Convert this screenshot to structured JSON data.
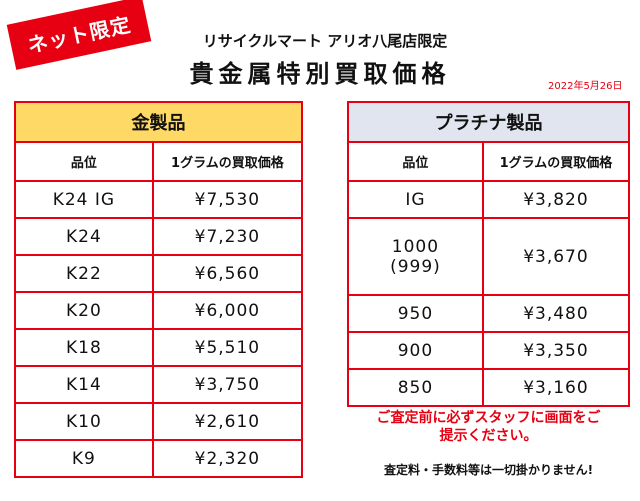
{
  "badge": "ネット限定",
  "store_name": "リサイクルマート アリオ八尾店限定",
  "title": "貴金属特別買取価格",
  "date": "2022年5月26日",
  "gold": {
    "heading": "金製品",
    "col_grade": "品位",
    "col_price": "1グラムの買取価格",
    "rows": [
      {
        "grade": "K24 IG",
        "price": "¥7,530"
      },
      {
        "grade": "K24",
        "price": "¥7,230"
      },
      {
        "grade": "K22",
        "price": "¥6,560"
      },
      {
        "grade": "K20",
        "price": "¥6,000"
      },
      {
        "grade": "K18",
        "price": "¥5,510"
      },
      {
        "grade": "K14",
        "price": "¥3,750"
      },
      {
        "grade": "K10",
        "price": "¥2,610"
      },
      {
        "grade": "K9",
        "price": "¥2,320"
      }
    ]
  },
  "platinum": {
    "heading": "プラチナ製品",
    "col_grade": "品位",
    "col_price": "1グラムの買取価格",
    "rows": [
      {
        "grade": "IG",
        "grade2": "",
        "price": "¥3,820"
      },
      {
        "grade": "1000",
        "grade2": "(999)",
        "price": "¥3,670"
      },
      {
        "grade": "950",
        "grade2": "",
        "price": "¥3,480"
      },
      {
        "grade": "900",
        "grade2": "",
        "price": "¥3,350"
      },
      {
        "grade": "850",
        "grade2": "",
        "price": "¥3,160"
      }
    ]
  },
  "notes": {
    "red_line1": "ご査定前に必ずスタッフに画面をご",
    "red_line2": "提示ください。",
    "black": "査定料・手数料等は一切掛かりません!"
  }
}
